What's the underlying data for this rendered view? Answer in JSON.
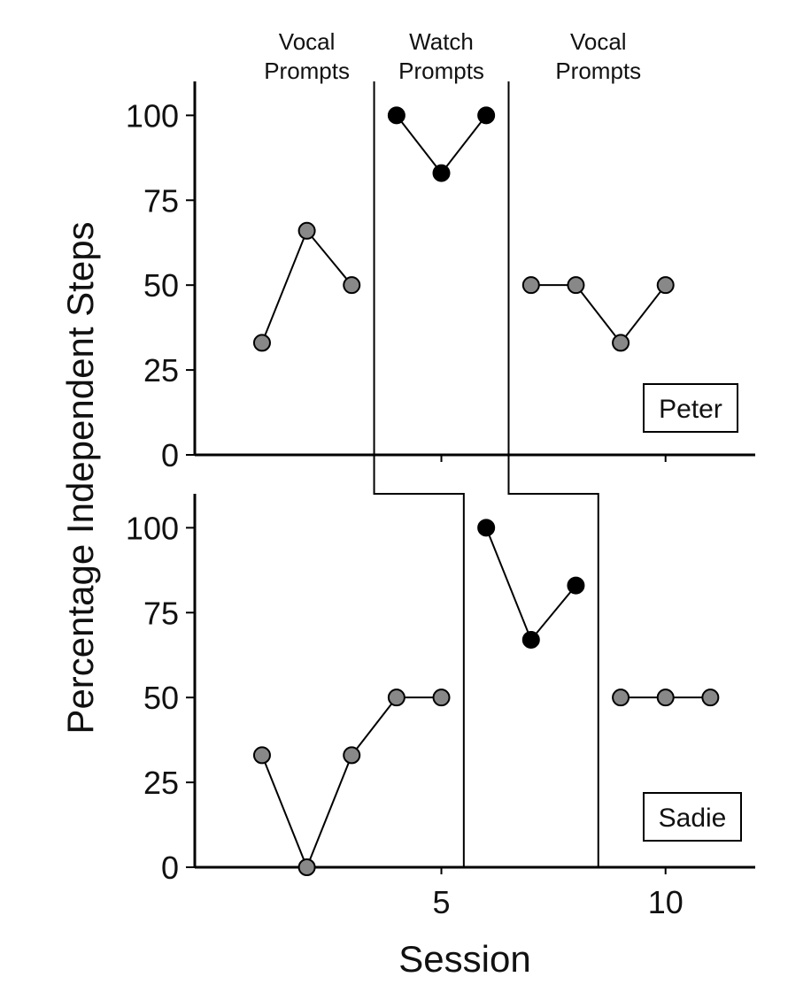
{
  "chart_data": {
    "type": "line",
    "xlabel": "Session",
    "ylabel": "Percentage Independent Steps",
    "xlim": [
      -0.5,
      12
    ],
    "ylim": [
      0,
      110
    ],
    "yticks": [
      0,
      25,
      50,
      75,
      100
    ],
    "xticks": [
      5,
      10
    ],
    "phase_labels": [
      {
        "lines": [
          "Vocal",
          "Prompts"
        ]
      },
      {
        "lines": [
          "Watch",
          "Prompts"
        ]
      },
      {
        "lines": [
          "Vocal",
          "Prompts"
        ]
      }
    ],
    "colors": {
      "vocal": "#888888",
      "watch": "#000000"
    },
    "panels": [
      {
        "name": "Peter",
        "phase_changes": [
          3.5,
          6.5
        ],
        "series": [
          {
            "phase": "vocal",
            "x": [
              1,
              2,
              3
            ],
            "y": [
              33,
              66,
              50
            ]
          },
          {
            "phase": "watch",
            "x": [
              4,
              5,
              6
            ],
            "y": [
              100,
              83,
              100
            ]
          },
          {
            "phase": "vocal",
            "x": [
              7,
              8,
              9,
              10
            ],
            "y": [
              50,
              50,
              33,
              50
            ]
          }
        ]
      },
      {
        "name": "Sadie",
        "phase_changes": [
          5.5,
          8.5
        ],
        "series": [
          {
            "phase": "vocal",
            "x": [
              1,
              2,
              3,
              4,
              5
            ],
            "y": [
              33,
              0,
              33,
              50,
              50
            ]
          },
          {
            "phase": "watch",
            "x": [
              6,
              7,
              8
            ],
            "y": [
              100,
              67,
              83
            ]
          },
          {
            "phase": "vocal",
            "x": [
              9,
              10,
              11
            ],
            "y": [
              50,
              50,
              50
            ]
          }
        ]
      }
    ]
  }
}
